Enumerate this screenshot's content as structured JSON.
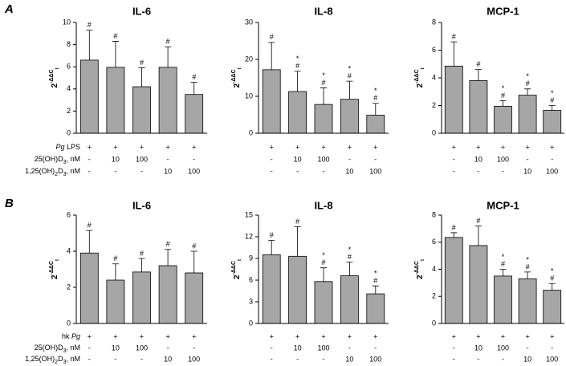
{
  "chart_data": [
    {
      "type": "bar",
      "title": "IL-6",
      "ylabel": {
        "base": "2",
        "exp": "-ΔΔC",
        "sub": "t"
      },
      "categories": [
        null,
        null,
        null,
        null,
        null
      ],
      "values": [
        6.6,
        5.95,
        4.2,
        5.95,
        3.5
      ],
      "errors": [
        2.7,
        2.35,
        1.7,
        1.85,
        1.1
      ],
      "annotations": [
        [
          "#"
        ],
        [
          "#"
        ],
        [
          "#"
        ],
        [
          "#"
        ],
        [
          "#"
        ]
      ],
      "color": "#a6a6a6",
      "ylim": [
        0,
        10
      ],
      "yticks": [
        0,
        2,
        4,
        6,
        8,
        10
      ]
    },
    {
      "type": "bar",
      "title": "IL-8",
      "ylabel": {
        "base": "2",
        "exp": "-ΔΔC",
        "sub": "t"
      },
      "categories": [
        null,
        null,
        null,
        null,
        null
      ],
      "values": [
        17.2,
        11.3,
        7.8,
        9.2,
        4.9
      ],
      "errors": [
        7.4,
        5.5,
        4.5,
        4.9,
        3.2
      ],
      "annotations": [
        [
          "#"
        ],
        [
          "*",
          "#"
        ],
        [
          "*",
          "#"
        ],
        [
          "*",
          "#"
        ],
        [
          "*",
          "#"
        ]
      ],
      "color": "#a6a6a6",
      "ylim": [
        0,
        30
      ],
      "yticks": [
        0,
        10,
        20,
        30
      ]
    },
    {
      "type": "bar",
      "title": "MCP-1",
      "ylabel": {
        "base": "2",
        "exp": "-ΔΔC",
        "sub": "t"
      },
      "categories": [
        null,
        null,
        null,
        null,
        null
      ],
      "values": [
        4.85,
        3.8,
        1.95,
        2.75,
        1.65
      ],
      "errors": [
        1.75,
        0.8,
        0.4,
        0.45,
        0.35
      ],
      "annotations": [
        [
          "#"
        ],
        [
          "#"
        ],
        [
          "*",
          "#"
        ],
        [
          "*",
          "#"
        ],
        [
          "*",
          "#"
        ]
      ],
      "color": "#a6a6a6",
      "ylim": [
        0,
        8
      ],
      "yticks": [
        0,
        2,
        4,
        6,
        8
      ]
    },
    {
      "type": "bar",
      "title": "IL-6",
      "ylabel": {
        "base": "2",
        "exp": "-ΔΔC",
        "sub": "t"
      },
      "categories": [
        null,
        null,
        null,
        null,
        null
      ],
      "values": [
        3.9,
        2.4,
        2.85,
        3.2,
        2.8
      ],
      "errors": [
        1.25,
        0.9,
        0.75,
        0.9,
        1.2
      ],
      "annotations": [
        [
          "#"
        ],
        [
          "#"
        ],
        [
          "#"
        ],
        [
          "#"
        ],
        [
          "#"
        ]
      ],
      "color": "#a6a6a6",
      "ylim": [
        0,
        6
      ],
      "yticks": [
        0,
        2,
        4,
        6
      ]
    },
    {
      "type": "bar",
      "title": "IL-8",
      "ylabel": {
        "base": "2",
        "exp": "-ΔΔC",
        "sub": "t"
      },
      "categories": [
        null,
        null,
        null,
        null,
        null
      ],
      "values": [
        9.5,
        9.3,
        5.8,
        6.6,
        4.1
      ],
      "errors": [
        2.0,
        4.1,
        1.9,
        1.9,
        1.1
      ],
      "annotations": [
        [
          "#"
        ],
        [
          "#"
        ],
        [
          "*",
          "#"
        ],
        [
          "*",
          "#"
        ],
        [
          "*",
          "#"
        ]
      ],
      "color": "#a6a6a6",
      "ylim": [
        0,
        15
      ],
      "yticks": [
        0,
        3,
        6,
        9,
        12,
        15
      ]
    },
    {
      "type": "bar",
      "title": "MCP-1",
      "ylabel": {
        "base": "2",
        "exp": "-ΔΔC",
        "sub": "t"
      },
      "categories": [
        null,
        null,
        null,
        null,
        null
      ],
      "values": [
        6.35,
        5.75,
        3.5,
        3.3,
        2.45
      ],
      "errors": [
        0.35,
        1.45,
        0.5,
        0.5,
        0.5
      ],
      "annotations": [
        [
          "#"
        ],
        [
          "#"
        ],
        [
          "*",
          "#"
        ],
        [
          "*",
          "#"
        ],
        [
          "*",
          "#"
        ]
      ],
      "color": "#a6a6a6",
      "ylim": [
        0,
        8
      ],
      "yticks": [
        0,
        2,
        4,
        6,
        8
      ]
    }
  ],
  "panels": [
    {
      "label": "A",
      "conditions": [
        {
          "name": [
            {
              "text": "Pg",
              "italic": true
            },
            {
              "text": " LPS"
            }
          ],
          "values": [
            "+",
            "+",
            "+",
            "+",
            "+"
          ]
        },
        {
          "name": [
            {
              "text": "25(OH)D"
            },
            {
              "text": "3",
              "sub": true
            },
            {
              "text": ", nM"
            }
          ],
          "values": [
            "-",
            "10",
            "100",
            "-",
            "-"
          ]
        },
        {
          "name": [
            {
              "text": "1,25(OH)"
            },
            {
              "text": "2",
              "sub": true
            },
            {
              "text": "D"
            },
            {
              "text": "3",
              "sub": true
            },
            {
              "text": ", nM"
            }
          ],
          "values": [
            "-",
            "-",
            "-",
            "10",
            "100"
          ]
        }
      ]
    },
    {
      "label": "B",
      "conditions": [
        {
          "name": [
            {
              "text": "hk "
            },
            {
              "text": "Pg",
              "italic": true
            }
          ],
          "values": [
            "+",
            "+",
            "+",
            "+",
            "+"
          ]
        },
        {
          "name": [
            {
              "text": "25(OH)D"
            },
            {
              "text": "3",
              "sub": true
            },
            {
              "text": ", nM"
            }
          ],
          "values": [
            "-",
            "10",
            "100",
            "-",
            "-"
          ]
        },
        {
          "name": [
            {
              "text": "1,25(OH)"
            },
            {
              "text": "2",
              "sub": true
            },
            {
              "text": "D"
            },
            {
              "text": "3",
              "sub": true
            },
            {
              "text": ", nM"
            }
          ],
          "values": [
            "-",
            "-",
            "-",
            "10",
            "100"
          ]
        }
      ]
    }
  ]
}
